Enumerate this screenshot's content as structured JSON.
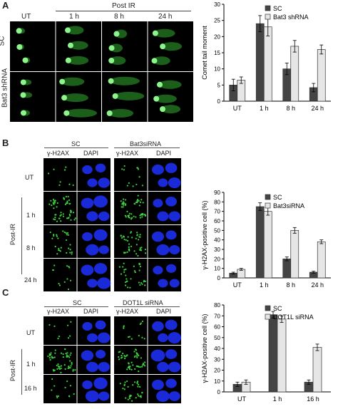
{
  "panel_a": {
    "letter": "A",
    "col_labels": [
      "UT",
      "1 h",
      "8 h",
      "24 h"
    ],
    "post_ir_label": "Post   IR",
    "row_labels": [
      "SC",
      "Bat3 shRNA"
    ]
  },
  "panel_b": {
    "letter": "B",
    "group_labels": [
      "SC",
      "Bat3siRNA"
    ],
    "stain_labels": [
      "γ-H2AX",
      "DAPI",
      "γ-H2AX",
      "DAPI"
    ],
    "row_labels": [
      "UT",
      "1 h",
      "8 h",
      "24 h"
    ],
    "post_ir_label": "Post-IR"
  },
  "panel_c": {
    "letter": "C",
    "group_labels": [
      "SC",
      "DOT1L siRNA"
    ],
    "stain_labels": [
      "γ-H2AX",
      "DAPI",
      "γ-H2AX",
      "DAPI"
    ],
    "row_labels": [
      "UT",
      "1 h",
      "16 h"
    ],
    "post_ir_label": "Post-IR"
  },
  "colors": {
    "sc_bar": "#444444",
    "knockdown_bar": "#e6e6e6",
    "gfp_green": "#3cd23c",
    "dapi_blue": "#1a2ad8",
    "micrograph_bg": "#000000"
  },
  "chart_data": [
    {
      "type": "bar",
      "categories": [
        "UT",
        "1 h",
        "8 h",
        "24 h"
      ],
      "series": [
        {
          "name": "SC",
          "values": [
            5,
            24,
            10,
            4.2
          ],
          "errors": [
            1.8,
            2.5,
            1.8,
            1.3
          ]
        },
        {
          "name": "Bat3 shRNA",
          "values": [
            6.5,
            23,
            17,
            16
          ],
          "errors": [
            1.0,
            2.8,
            1.8,
            1.4
          ]
        }
      ],
      "xlabel": "",
      "ylabel": "Comet tail moment",
      "ylim": [
        0,
        30
      ],
      "yticks": [
        0,
        5,
        10,
        15,
        20,
        25,
        30
      ],
      "legend_position": "top-right"
    },
    {
      "type": "bar",
      "categories": [
        "UT",
        "1 h",
        "8 h",
        "24 h"
      ],
      "series": [
        {
          "name": "SC",
          "values": [
            5,
            75,
            20,
            6
          ],
          "errors": [
            1,
            4,
            2,
            1
          ]
        },
        {
          "name": "Bat3siRNA",
          "values": [
            9,
            70,
            50,
            38
          ],
          "errors": [
            1,
            4,
            3,
            2
          ]
        }
      ],
      "xlabel": "",
      "ylabel": "γ-H2AX-positive cell (%)",
      "ylim": [
        0,
        90
      ],
      "yticks": [
        0,
        10,
        20,
        30,
        40,
        50,
        60,
        70,
        80,
        90
      ],
      "legend_position": "top-right"
    },
    {
      "type": "bar",
      "categories": [
        "UT",
        "1 h",
        "16 h"
      ],
      "series": [
        {
          "name": "SC",
          "values": [
            7,
            71,
            9
          ],
          "errors": [
            2,
            3,
            2
          ]
        },
        {
          "name": "DOT1L siRNA",
          "values": [
            9,
            67,
            41
          ],
          "errors": [
            2,
            3,
            3
          ]
        }
      ],
      "xlabel": "",
      "ylabel": "γ-H2AX-positive cell (%)",
      "ylim": [
        0,
        80
      ],
      "yticks": [
        0,
        10,
        20,
        30,
        40,
        50,
        60,
        70,
        80
      ],
      "legend_position": "top-right"
    }
  ]
}
